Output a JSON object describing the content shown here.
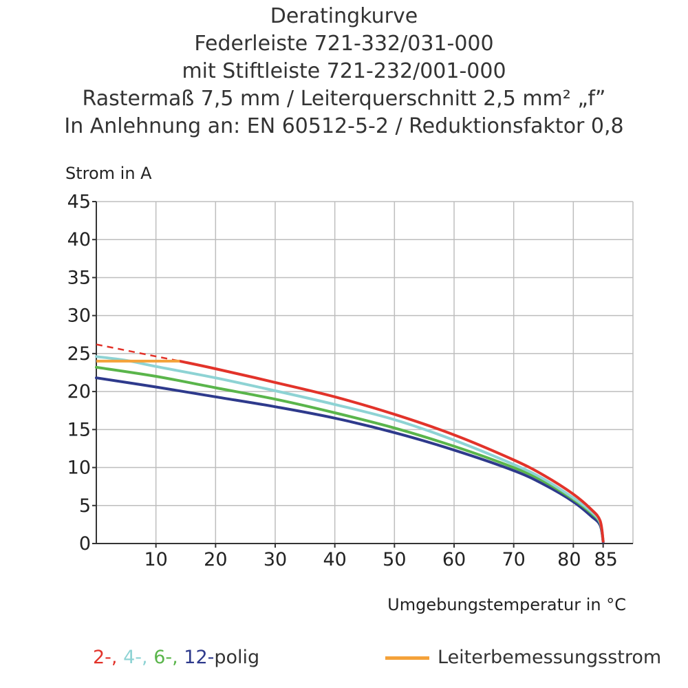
{
  "chart_data": {
    "type": "line",
    "title": "Deratingkurve",
    "subtitle_lines": [
      "Federleiste 721-332/031-000",
      "mit Stiftleiste 721-232/001-000",
      "Rastermaß 7,5 mm / Leiterquerschnitt 2,5 mm² „f”",
      "In Anlehnung an: EN 60512-5-2 / Reduktionsfaktor 0,8"
    ],
    "ylabel": "Strom in A",
    "xlabel": "Umgebungstemperatur in °C",
    "xlim": [
      0,
      90
    ],
    "ylim": [
      0,
      45
    ],
    "x_ticks": [
      10,
      20,
      30,
      40,
      50,
      60,
      70,
      80,
      85
    ],
    "x_tick_labels": [
      "10",
      "20",
      "30",
      "40",
      "50",
      "60",
      "70",
      "80",
      "85"
    ],
    "y_ticks": [
      0,
      5,
      10,
      15,
      20,
      25,
      30,
      35,
      40,
      45
    ],
    "y_tick_labels": [
      "0",
      "5",
      "10",
      "15",
      "20",
      "25",
      "30",
      "35",
      "40",
      "45"
    ],
    "grid": true,
    "series": [
      {
        "name": "2-polig",
        "legend_text": "2-",
        "color": "#e2332a",
        "width": 4,
        "x": [
          14,
          20,
          30,
          40,
          50,
          60,
          70,
          75,
          80,
          83,
          84.5,
          85
        ],
        "y": [
          24,
          23,
          21.2,
          19.3,
          17,
          14.3,
          11,
          9,
          6.5,
          4.5,
          3,
          0.3
        ],
        "dashed": {
          "x": [
            0,
            14
          ],
          "y": [
            26.2,
            24
          ]
        }
      },
      {
        "name": "4-polig",
        "legend_text": "4-",
        "color": "#8ed3d4",
        "width": 4,
        "x": [
          0,
          5,
          10,
          20,
          30,
          40,
          50,
          60,
          70,
          75,
          80,
          83,
          84.5,
          85
        ],
        "y": [
          24.6,
          24.1,
          23.3,
          21.8,
          20.1,
          18.3,
          16.3,
          13.6,
          10.4,
          8.5,
          6,
          4.2,
          2.8,
          0.3
        ]
      },
      {
        "name": "6-polig",
        "legend_text": "6-",
        "color": "#5ab54b",
        "width": 4,
        "x": [
          0,
          10,
          20,
          30,
          40,
          50,
          60,
          70,
          75,
          80,
          83,
          84.5,
          85
        ],
        "y": [
          23.2,
          22,
          20.5,
          19,
          17.2,
          15.2,
          12.8,
          10,
          8.2,
          5.8,
          4,
          2.7,
          0.3
        ]
      },
      {
        "name": "12-polig",
        "legend_text": "12-",
        "color": "#2e3a8c",
        "width": 4,
        "x": [
          0,
          10,
          20,
          30,
          40,
          50,
          60,
          70,
          75,
          80,
          83,
          84.5,
          85
        ],
        "y": [
          21.8,
          20.6,
          19.3,
          18,
          16.5,
          14.6,
          12.3,
          9.6,
          7.8,
          5.5,
          3.6,
          2.4,
          0.2
        ]
      }
    ],
    "rated_current": {
      "name": "Leiterbemessungsstrom",
      "color": "#f4a23a",
      "x": [
        0,
        14
      ],
      "y": [
        24,
        24
      ]
    },
    "legend": {
      "suffix": "polig",
      "rated_label": "Leiterbemessungsstrom",
      "placement": "bottom"
    }
  }
}
